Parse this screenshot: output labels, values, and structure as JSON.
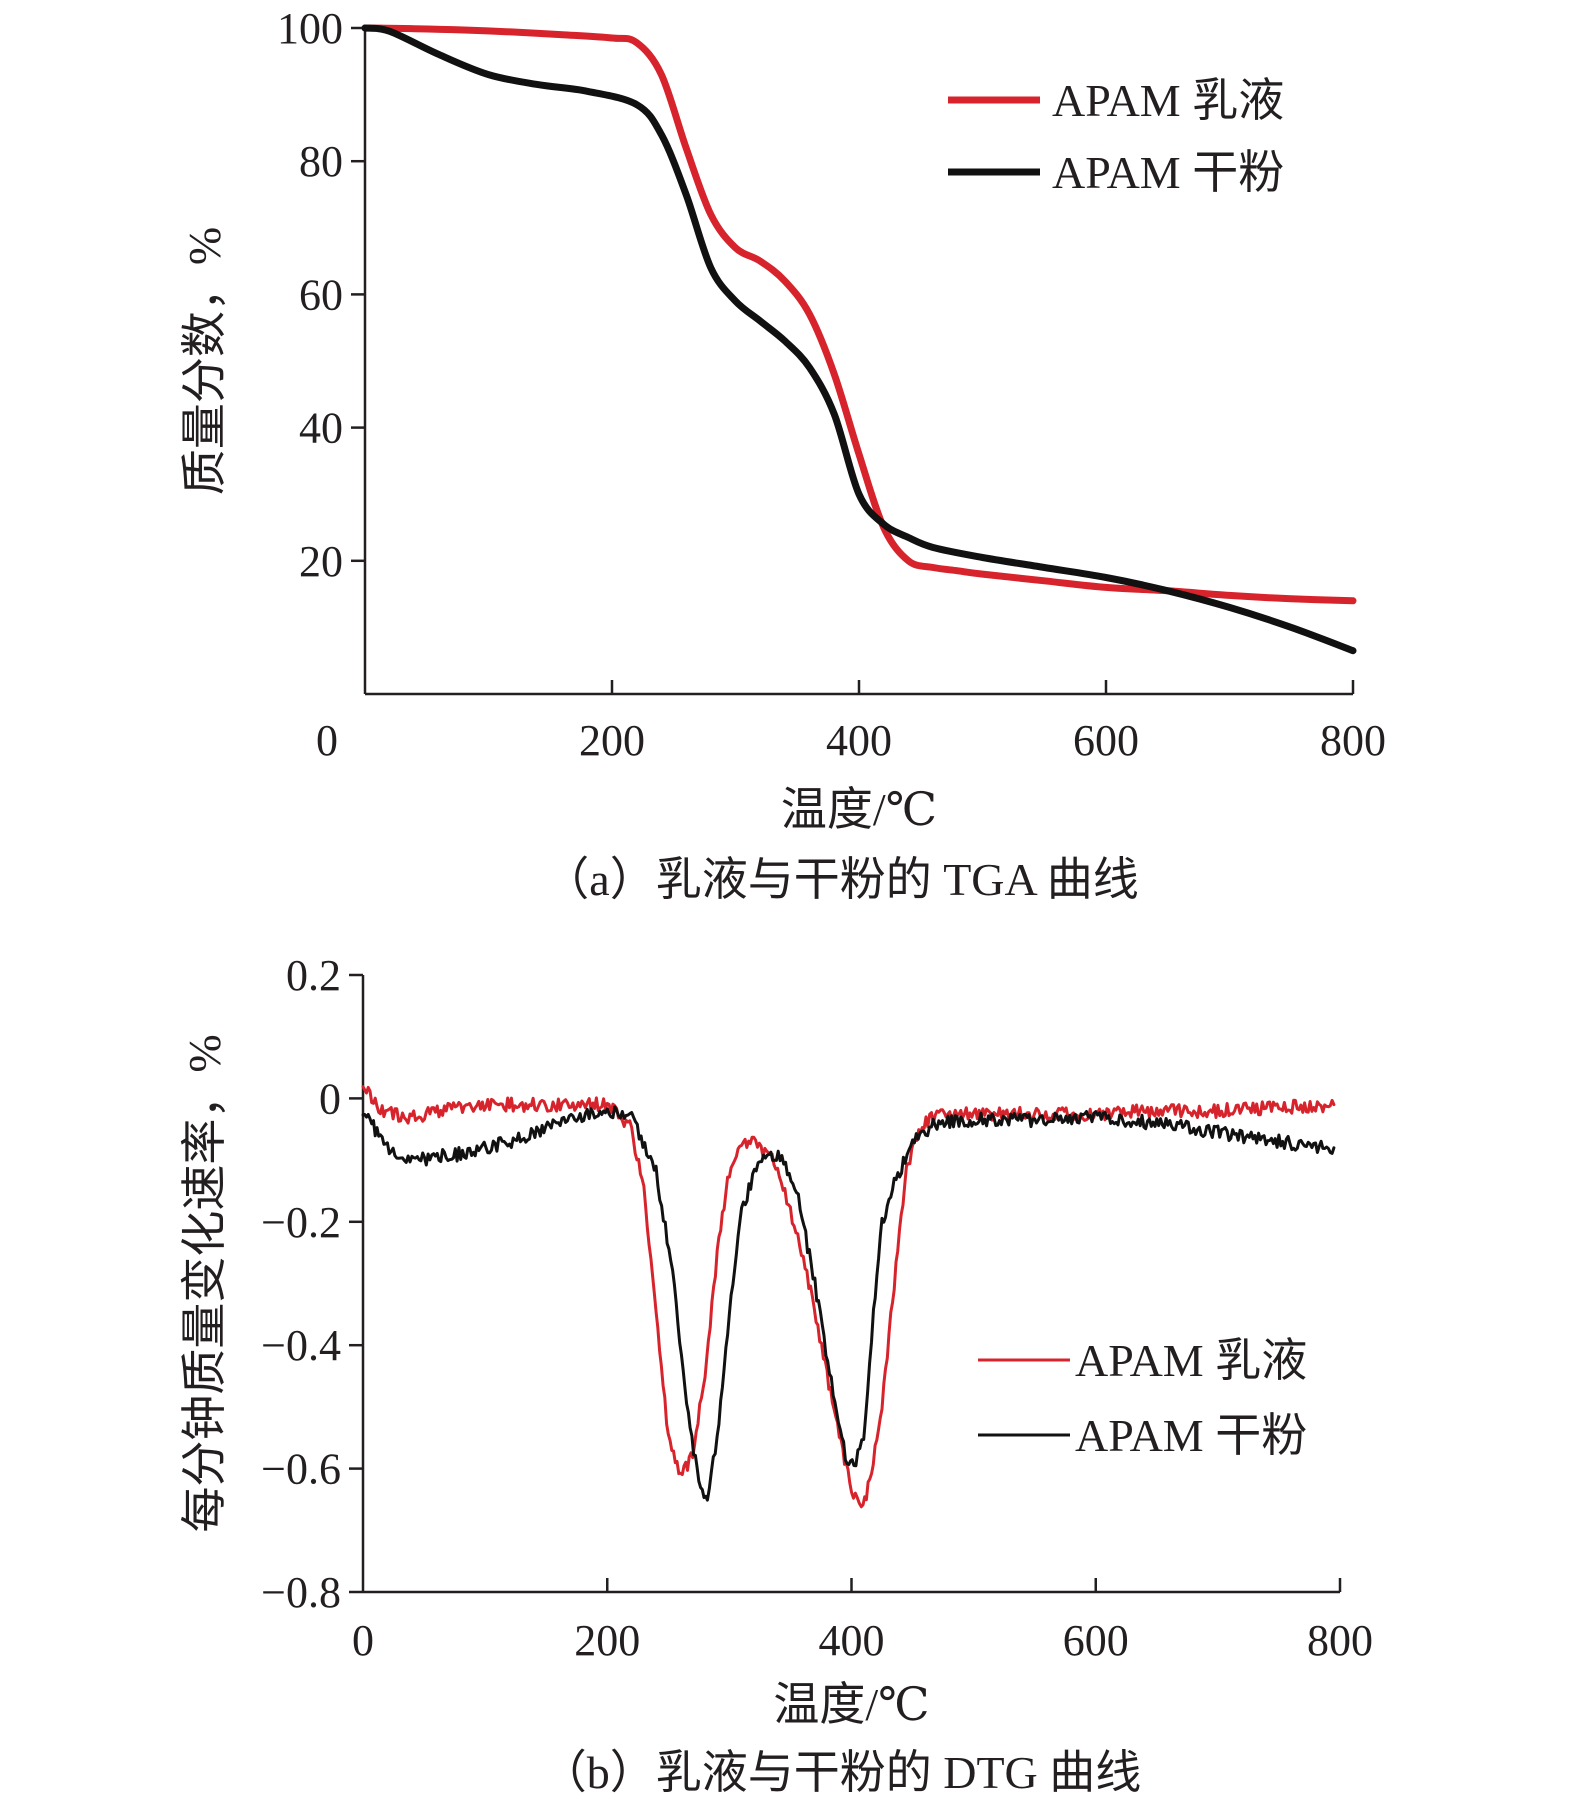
{
  "colors": {
    "emulsion": "#d7242c",
    "powder": "#111111",
    "axis": "#231f20"
  },
  "chart_data": [
    {
      "type": "line",
      "panel": "a",
      "caption": "（a）乳液与干粉的 TGA 曲线",
      "xlabel": "温度/℃",
      "ylabel": "质量分数，%",
      "xlim": [
        0,
        800
      ],
      "ylim": [
        0,
        100
      ],
      "xticks": [
        0,
        200,
        400,
        600,
        800
      ],
      "xtick_labels": [
        "0",
        "200",
        "400",
        "600",
        "800"
      ],
      "yticks": [
        20,
        40,
        60,
        80,
        100
      ],
      "ytick_labels": [
        "20",
        "40",
        "60",
        "80",
        "100"
      ],
      "grid": false,
      "legend_position": "top-right",
      "series": [
        {
          "name": "APAM 乳液",
          "color": "#d7242c",
          "x": [
            0,
            40,
            80,
            120,
            160,
            200,
            220,
            240,
            260,
            280,
            300,
            320,
            340,
            360,
            380,
            400,
            420,
            440,
            460,
            480,
            500,
            550,
            600,
            650,
            700,
            750,
            800
          ],
          "y": [
            100,
            99.9,
            99.7,
            99.4,
            99,
            98.5,
            97.8,
            93,
            82,
            72,
            67,
            65,
            62,
            57,
            48,
            36,
            25,
            20,
            19,
            18.5,
            18,
            17,
            16,
            15.5,
            14.8,
            14.3,
            14
          ]
        },
        {
          "name": "APAM 干粉",
          "color": "#111111",
          "x": [
            0,
            20,
            60,
            100,
            140,
            180,
            220,
            240,
            260,
            280,
            300,
            320,
            340,
            360,
            380,
            400,
            420,
            440,
            460,
            500,
            550,
            600,
            650,
            700,
            750,
            800
          ],
          "y": [
            100,
            99.5,
            96,
            93,
            91.5,
            90.5,
            88.5,
            84,
            75,
            64,
            59,
            56,
            53,
            49,
            42,
            30,
            25.5,
            23.5,
            22,
            20.5,
            19,
            17.5,
            15.5,
            13,
            10,
            6.5
          ]
        }
      ]
    },
    {
      "type": "line",
      "panel": "b",
      "caption": "（b）乳液与干粉的 DTG 曲线",
      "xlabel": "温度/℃",
      "ylabel": "每分钟质量变化速率，%",
      "xlim": [
        0,
        800
      ],
      "ylim": [
        -0.8,
        0.2
      ],
      "xticks": [
        0,
        200,
        400,
        600,
        800
      ],
      "xtick_labels": [
        "0",
        "200",
        "400",
        "600",
        "800"
      ],
      "yticks": [
        0.2,
        0,
        -0.2,
        -0.4,
        -0.6,
        -0.8
      ],
      "ytick_labels": [
        "0.2",
        "0",
        "−0.2",
        "−0.4",
        "−0.6",
        "−0.8"
      ],
      "grid": false,
      "legend_position": "bottom-right",
      "series": [
        {
          "name": "APAM 乳液",
          "color": "#d7242c",
          "x": [
            0,
            10,
            20,
            40,
            80,
            120,
            160,
            200,
            220,
            230,
            240,
            250,
            260,
            270,
            280,
            290,
            300,
            310,
            320,
            335,
            350,
            365,
            380,
            390,
            400,
            408,
            415,
            425,
            435,
            445,
            455,
            470,
            500,
            550,
            600,
            650,
            700,
            750,
            795
          ],
          "y": [
            0.03,
            -0.01,
            -0.025,
            -0.03,
            -0.015,
            -0.01,
            -0.01,
            -0.01,
            -0.05,
            -0.15,
            -0.35,
            -0.55,
            -0.61,
            -0.58,
            -0.45,
            -0.25,
            -0.12,
            -0.075,
            -0.07,
            -0.1,
            -0.18,
            -0.3,
            -0.45,
            -0.55,
            -0.63,
            -0.67,
            -0.62,
            -0.5,
            -0.3,
            -0.12,
            -0.05,
            -0.025,
            -0.025,
            -0.025,
            -0.025,
            -0.02,
            -0.02,
            -0.015,
            -0.01
          ]
        },
        {
          "name": "APAM 干粉",
          "color": "#111111",
          "x": [
            0,
            10,
            20,
            40,
            80,
            120,
            160,
            200,
            220,
            240,
            255,
            265,
            275,
            282,
            290,
            300,
            310,
            325,
            340,
            355,
            370,
            385,
            395,
            402,
            410,
            418,
            425,
            435,
            450,
            470,
            500,
            550,
            600,
            650,
            700,
            750,
            795
          ],
          "y": [
            -0.02,
            -0.05,
            -0.08,
            -0.1,
            -0.09,
            -0.07,
            -0.04,
            -0.02,
            -0.03,
            -0.12,
            -0.3,
            -0.5,
            -0.62,
            -0.65,
            -0.55,
            -0.35,
            -0.18,
            -0.1,
            -0.09,
            -0.15,
            -0.3,
            -0.48,
            -0.58,
            -0.6,
            -0.55,
            -0.35,
            -0.2,
            -0.14,
            -0.07,
            -0.04,
            -0.035,
            -0.035,
            -0.03,
            -0.04,
            -0.055,
            -0.07,
            -0.08
          ]
        }
      ]
    }
  ]
}
